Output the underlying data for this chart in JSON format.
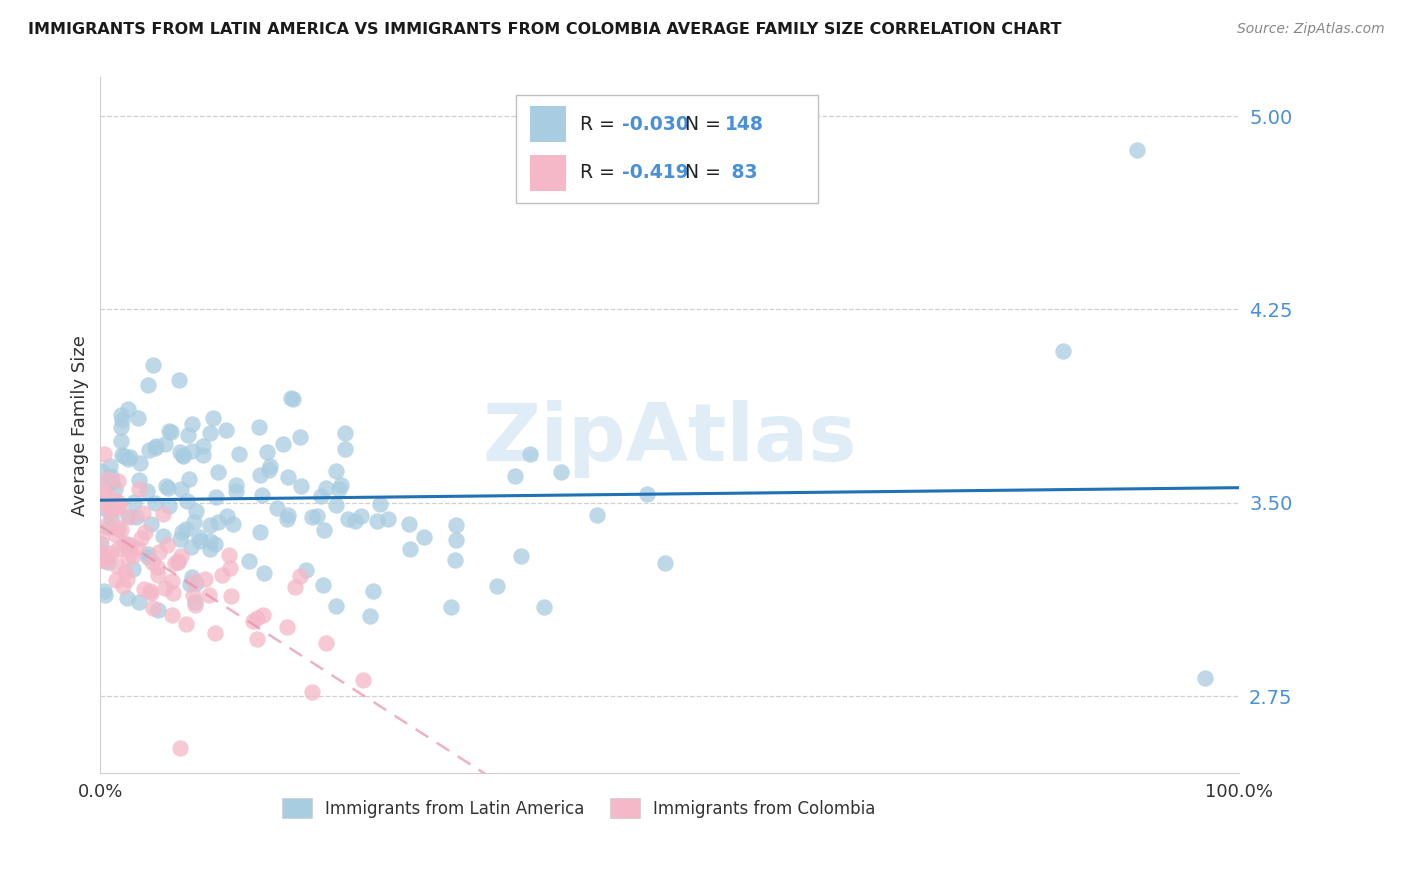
{
  "title": "IMMIGRANTS FROM LATIN AMERICA VS IMMIGRANTS FROM COLOMBIA AVERAGE FAMILY SIZE CORRELATION CHART",
  "source": "Source: ZipAtlas.com",
  "ylabel": "Average Family Size",
  "xlim": [
    0,
    1.0
  ],
  "ylim": [
    2.45,
    5.15
  ],
  "yticks": [
    2.75,
    3.5,
    4.25,
    5.0
  ],
  "xticks": [
    0.0,
    0.25,
    0.5,
    0.75,
    1.0
  ],
  "xticklabels": [
    "0.0%",
    "",
    "",
    "",
    "100.0%"
  ],
  "legend_label_blue": "Immigrants from Latin America",
  "legend_label_pink": "Immigrants from Colombia",
  "R_blue": -0.03,
  "N_blue": 148,
  "R_pink": -0.419,
  "N_pink": 83,
  "blue_color": "#a8cce0",
  "pink_color": "#f4b8c8",
  "blue_line_color": "#2171b5",
  "pink_line_color": "#e88fa8",
  "watermark": "ZipAtlas",
  "background_color": "#ffffff",
  "ytick_color": "#4a90d9",
  "xtick_color": "#333333",
  "grid_color": "#d0d0d0",
  "title_color": "#1a1a1a",
  "source_color": "#888888",
  "ylabel_color": "#333333"
}
